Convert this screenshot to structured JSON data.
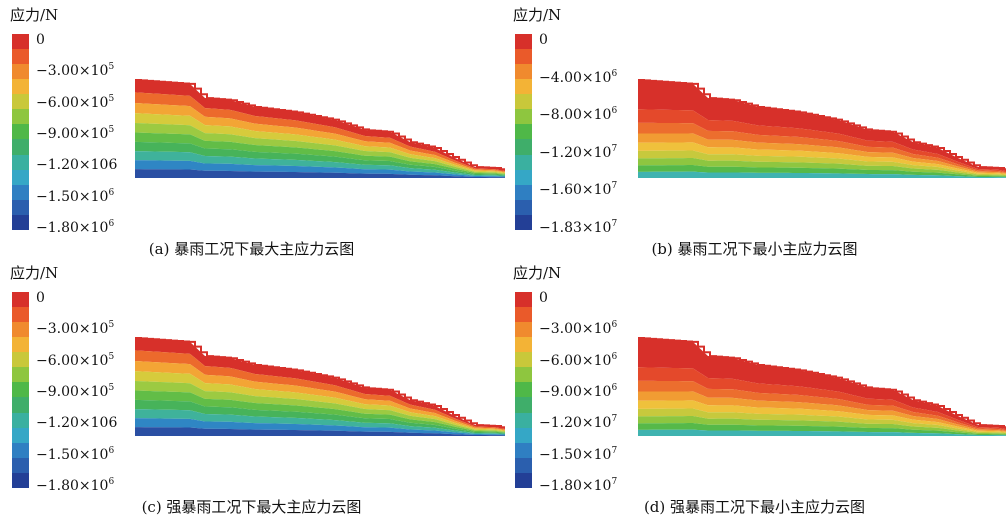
{
  "panels": [
    {
      "unit_label": "应力/N",
      "caption": "(a) 暴雨工况下最大主应力云图",
      "colorbar_labels": [
        "0",
        "−3.00×10<sup>5</sup>",
        "−6.00×10<sup>5</sup>",
        "−9.00×10<sup>5</sup>",
        "−1.20×106",
        "−1.50×10<sup>6</sup>",
        "−1.80×10<sup>6</sup>"
      ],
      "palette": "max"
    },
    {
      "unit_label": "应力/N",
      "caption": "(b) 暴雨工况下最小主应力云图",
      "colorbar_labels": [
        "0",
        "−4.00×10<sup>6</sup>",
        "−8.00×10<sup>6</sup>",
        "−1.20×10<sup>7</sup>",
        "−1.60×10<sup>7</sup>",
        "−1.83×10<sup>7</sup>"
      ],
      "palette": "min"
    },
    {
      "unit_label": "应力/N",
      "caption": "(c) 强暴雨工况下最大主应力云图",
      "colorbar_labels": [
        "0",
        "−3.00×10<sup>5</sup>",
        "−6.00×10<sup>5</sup>",
        "−9.00×10<sup>5</sup>",
        "−1.20×106",
        "−1.50×10<sup>6</sup>",
        "−1.80×10<sup>6</sup>"
      ],
      "palette": "max"
    },
    {
      "unit_label": "应力/N",
      "caption": "(d) 强暴雨工况下最小主应力云图",
      "colorbar_labels": [
        "0",
        "−3.00×10<sup>6</sup>",
        "−6.00×10<sup>6</sup>",
        "−9.00×10<sup>6</sup>",
        "−1.20×10<sup>7</sup>",
        "−1.50×10<sup>7</sup>",
        "−1.80×10<sup>7</sup>"
      ],
      "palette": "min"
    }
  ],
  "colors": {
    "colorbar": [
      "#d7302a",
      "#ea5a2a",
      "#f08a2e",
      "#f3b336",
      "#c9c83a",
      "#8ec63f",
      "#4fb848",
      "#3fae6a",
      "#3ab0a0",
      "#35a7c6",
      "#2f7fc2",
      "#2b5fae",
      "#233f96"
    ],
    "max_contour": [
      "#d7302a",
      "#ec6a2c",
      "#f3a535",
      "#d6cb3c",
      "#9cca42",
      "#62bd47",
      "#47b35a",
      "#3fb29b",
      "#2f86c4",
      "#2a4fa3"
    ],
    "min_contour": [
      "#d7302a",
      "#e4492b",
      "#ec6e2e",
      "#f19c33",
      "#efc13c",
      "#c7c93d",
      "#8ec640",
      "#56b949",
      "#3fb3b0"
    ]
  }
}
